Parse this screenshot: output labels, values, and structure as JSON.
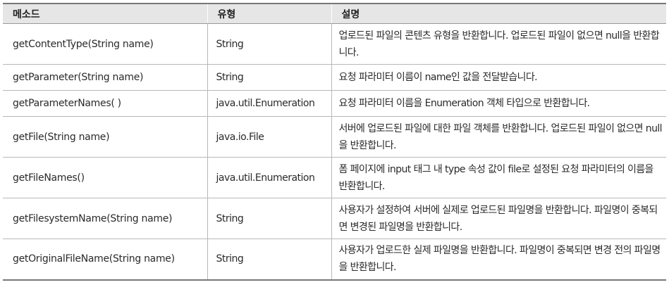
{
  "headers": {
    "method": "메소드",
    "type": "유형",
    "description": "설명"
  },
  "rows": [
    {
      "method": "getContentType(String name)",
      "type": "String",
      "description": "업로드된 파일의 콘텐츠 유형을 반환합니다. 업로드된 파일이 없으면 null을 반환합니다."
    },
    {
      "method": "getParameter(String name)",
      "type": "String",
      "description": "요청 파라미터 이름이 name인 값을 전달받습니다."
    },
    {
      "method": "getParameterNames( )",
      "type": "java.util.Enumeration",
      "description": "요청 파라미터 이름을 Enumeration 객체 타입으로 반환합니다."
    },
    {
      "method": "getFile(String name)",
      "type": "java.io.File",
      "description": "서버에 업로드된 파일에 대한 파일 객체를 반환합니다. 업로드된 파일이 없으면 null을 반환합니다."
    },
    {
      "method": "getFileNames()",
      "type": "java.util.Enumeration",
      "description": "폼 페이지에 input 태그 내 type 속성 값이 file로 설정된 요청 파라미터의 이름을 반환합니다."
    },
    {
      "method": "getFilesystemName(String name)",
      "type": "String",
      "description": "사용자가 설정하여 서버에 실제로 업로드된 파일명을 반환합니다. 파일명이 중복되면 변경된 파일명을 반환합니다."
    },
    {
      "method": "getOriginalFileName(String name)",
      "type": "String",
      "description": "사용자가 업로드한 실제 파일명을 반환합니다. 파일명이 중복되면 변경 전의 파일명을 반환합니다."
    }
  ]
}
